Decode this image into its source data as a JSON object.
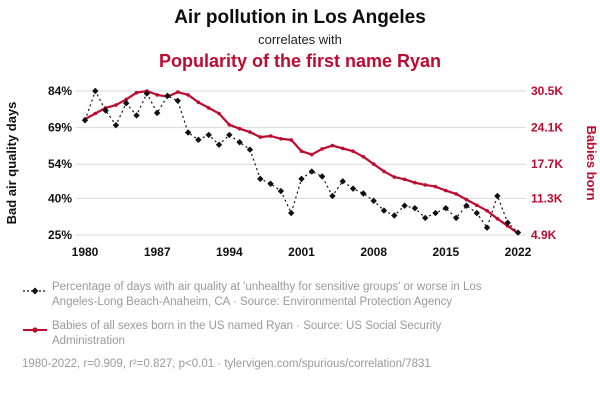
{
  "header": {
    "title": "Air pollution in Los Angeles",
    "subtitle": "correlates with",
    "title2": "Popularity of the first name Ryan"
  },
  "colors": {
    "accent_red": "#bf0a30",
    "text_gray": "#9a9a9a",
    "grid": "#d9d9d9",
    "ink": "#111111"
  },
  "chart_data": {
    "type": "line",
    "years": [
      1980,
      1981,
      1982,
      1983,
      1984,
      1985,
      1986,
      1987,
      1988,
      1989,
      1990,
      1991,
      1992,
      1993,
      1994,
      1995,
      1996,
      1997,
      1998,
      1999,
      2000,
      2001,
      2002,
      2003,
      2004,
      2005,
      2006,
      2007,
      2008,
      2009,
      2010,
      2011,
      2012,
      2013,
      2014,
      2015,
      2016,
      2017,
      2018,
      2019,
      2020,
      2021,
      2022
    ],
    "x_ticks": [
      1980,
      1987,
      1994,
      2001,
      2008,
      2015,
      2022
    ],
    "left_axis": {
      "label": "Bad air quality days",
      "range": [
        25,
        84
      ],
      "ticks": [
        84,
        69,
        54,
        40,
        25
      ],
      "tick_labels": [
        "84%",
        "69%",
        "54%",
        "40%",
        "25%"
      ]
    },
    "right_axis": {
      "label": "Babies born",
      "range": [
        4.9,
        30.5
      ],
      "ticks": [
        30.5,
        24.1,
        17.7,
        11.3,
        4.9
      ],
      "tick_labels": [
        "30.5K",
        "24.1K",
        "17.7K",
        "11.3K",
        "4.9K"
      ]
    },
    "series": [
      {
        "name": "Percentage of days with bad air quality in Los Angeles",
        "axis": "left",
        "style": "dashed-diamond",
        "color": "#111111",
        "values": [
          72,
          84,
          76,
          70,
          79,
          74,
          83,
          75,
          82,
          80,
          67,
          64,
          66,
          62,
          66,
          63,
          60,
          48,
          46,
          43,
          34,
          48,
          51,
          49,
          41,
          47,
          44,
          42,
          39,
          35,
          33,
          37,
          36,
          32,
          34,
          36,
          32,
          37,
          34,
          28,
          41,
          30,
          26
        ]
      },
      {
        "name": "Babies born in the US named Ryan (thousands)",
        "axis": "right",
        "style": "solid-dot",
        "color": "#bf0a30",
        "values": [
          25.5,
          26.5,
          27.5,
          28,
          29,
          30.2,
          30.5,
          29.8,
          29.5,
          30.3,
          29.8,
          28.5,
          27.5,
          26.5,
          24.5,
          23.8,
          23.2,
          22.3,
          22.5,
          22.0,
          21.8,
          19.8,
          19.2,
          20.2,
          20.8,
          20.3,
          19.8,
          18.8,
          17.5,
          16.2,
          15.2,
          14.8,
          14.2,
          13.8,
          13.5,
          12.8,
          12.2,
          11.2,
          10.2,
          9.2,
          7.8,
          6.5,
          5.2
        ]
      }
    ]
  },
  "legend": [
    {
      "marker": "dashed-diamond",
      "text": "Percentage of days with air quality at 'unhealthy for sensitive groups' or worse in Los Angeles-Long Beach-Anaheim, CA · Source: Environmental Protection Agency"
    },
    {
      "marker": "solid-dot",
      "text": "Babies of all sexes born in the US named Ryan · Source: US Social Security Administration"
    }
  ],
  "footer": "1980-2022, r=0.909, r²=0.827, p<0.01 · tylervigen.com/spurious/correlation/7831"
}
